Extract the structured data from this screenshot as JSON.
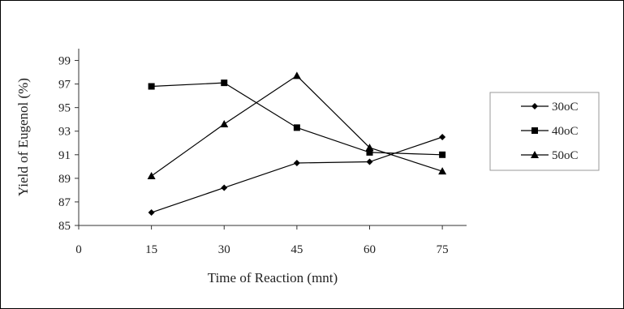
{
  "chart_data": {
    "type": "line",
    "title": "",
    "xlabel": "Time of Reaction (mnt)",
    "ylabel": "Yield of Eugenol (%)",
    "x": [
      15,
      30,
      45,
      60,
      75
    ],
    "xlim": [
      0,
      80
    ],
    "ylim": [
      85,
      100
    ],
    "xticks": [
      0,
      15,
      30,
      45,
      60,
      75
    ],
    "yticks": [
      85,
      87,
      89,
      91,
      93,
      95,
      97,
      99
    ],
    "grid": false,
    "legend_position": "right",
    "series": [
      {
        "name": "30oC",
        "marker": "diamond",
        "color": "#000000",
        "values": [
          86.1,
          88.2,
          90.3,
          90.4,
          92.5
        ]
      },
      {
        "name": "40oC",
        "marker": "square",
        "color": "#000000",
        "values": [
          96.8,
          97.1,
          93.3,
          91.2,
          91.0
        ]
      },
      {
        "name": "50oC",
        "marker": "triangle",
        "color": "#000000",
        "values": [
          89.2,
          93.6,
          97.7,
          91.6,
          89.6
        ]
      }
    ]
  }
}
